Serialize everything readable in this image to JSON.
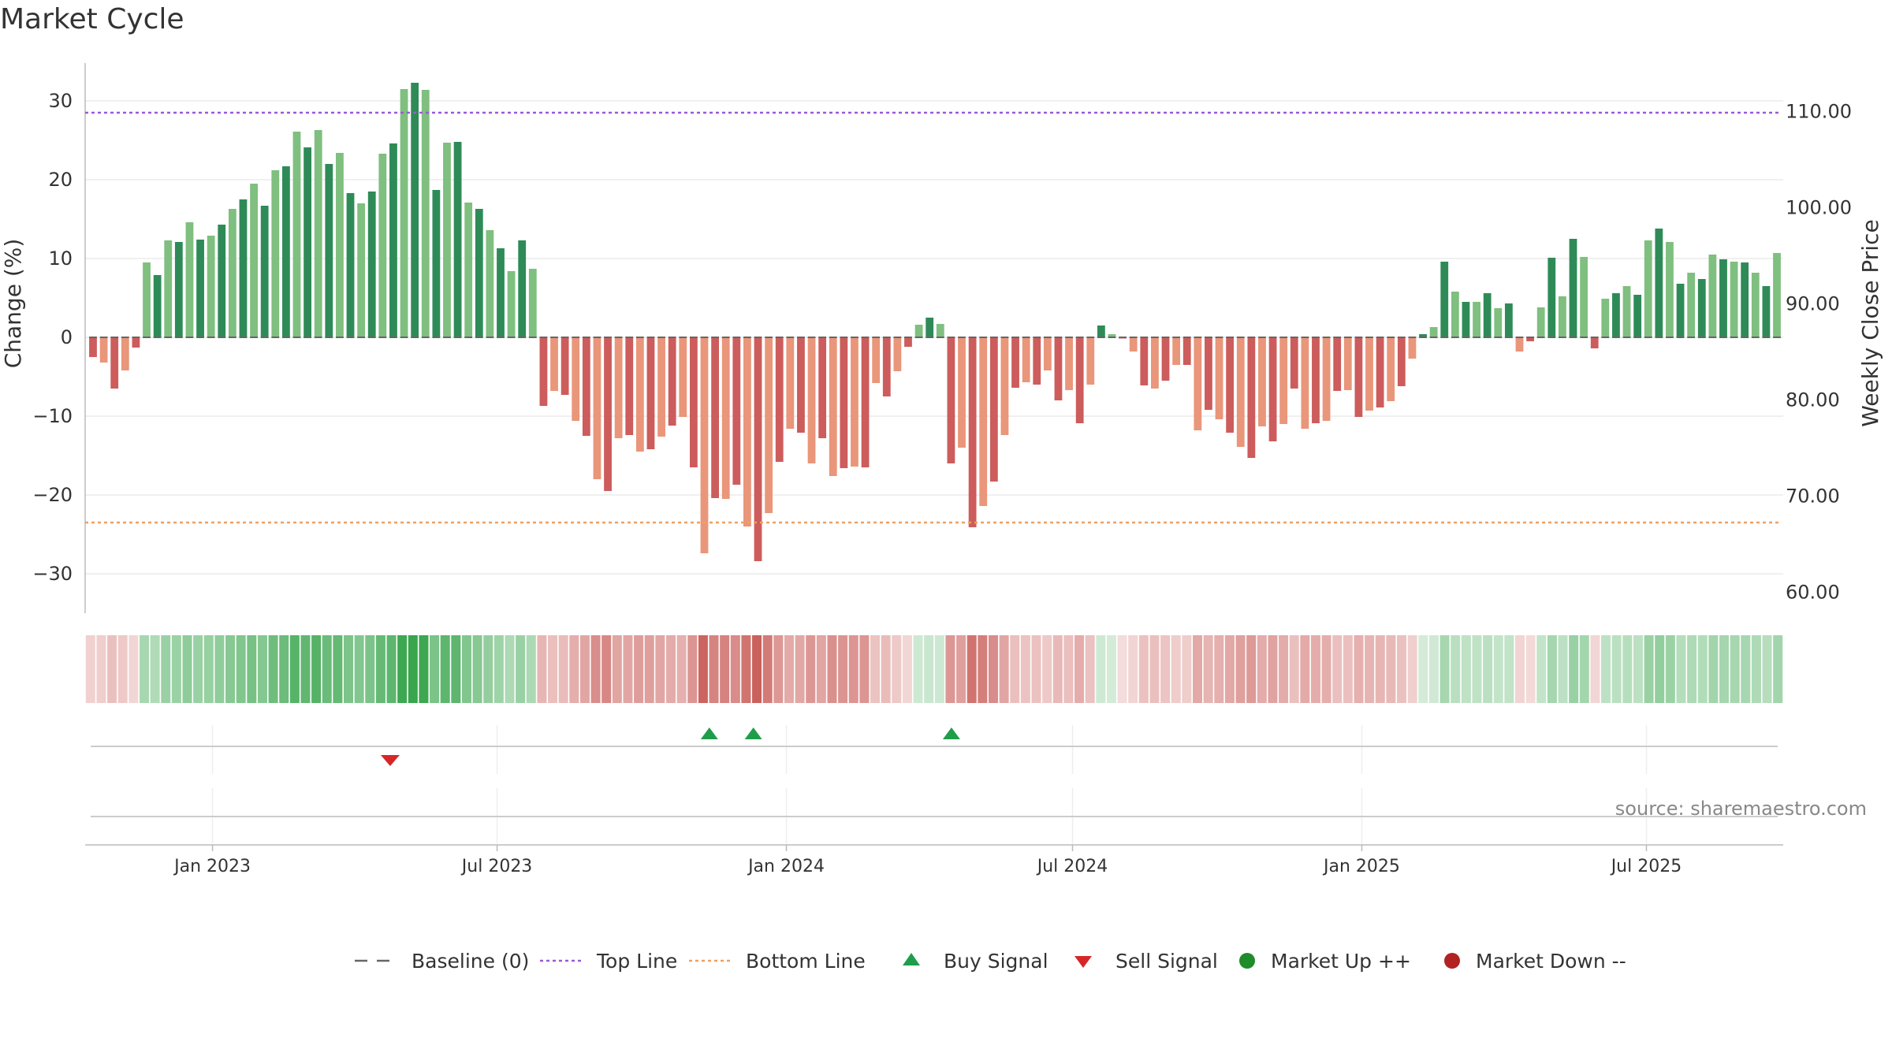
{
  "chart_data": {
    "type": "bar",
    "title": "Market Cycle",
    "ylabel": "Change (%)",
    "y2label": "Weekly Close Price",
    "ylim": [
      -35,
      35
    ],
    "y2lim": [
      57.5,
      115
    ],
    "yticks": [
      30,
      20,
      10,
      0,
      -10,
      -20,
      -30
    ],
    "yticklabels": [
      "30",
      "20",
      "10",
      "0",
      "−10",
      "−20",
      "−30"
    ],
    "y2ticks": [
      110,
      100,
      90,
      80,
      70,
      60
    ],
    "y2ticklabels": [
      "110.00",
      "100.00",
      "90.00",
      "80.00",
      "70.00",
      "60.00"
    ],
    "x_start": "2022-10-17",
    "x_end": "2025-09-22",
    "x_interval_days": 7,
    "xticks": [
      "2023-01-01",
      "2023-07-01",
      "2024-01-01",
      "2024-07-01",
      "2025-01-01",
      "2025-07-01"
    ],
    "xticklabels": [
      "Jan 2023",
      "Jul 2023",
      "Jan 2024",
      "Jul 2024",
      "Jan 2025",
      "Jul 2025"
    ],
    "top_line": 28.5,
    "bottom_line": -23.5,
    "values": [
      -2.5,
      -3.2,
      -6.5,
      -4.2,
      -1.3,
      9.5,
      7.9,
      12.3,
      12.1,
      14.6,
      12.4,
      12.9,
      14.3,
      16.3,
      17.5,
      19.5,
      16.7,
      21.2,
      21.7,
      26.1,
      24.1,
      26.3,
      22,
      23.4,
      18.3,
      17,
      18.5,
      23.3,
      24.6,
      31.5,
      32.3,
      31.4,
      18.7,
      24.7,
      24.8,
      17.1,
      16.3,
      13.6,
      11.3,
      8.4,
      12.3,
      8.7,
      -8.7,
      -6.8,
      -7.3,
      -10.6,
      -12.5,
      -18,
      -19.5,
      -12.8,
      -12.4,
      -14.5,
      -14.2,
      -12.6,
      -11.2,
      -10.1,
      -16.5,
      -27.4,
      -20.4,
      -20.5,
      -18.7,
      -24,
      -28.4,
      -22.3,
      -15.8,
      -11.6,
      -12.1,
      -16,
      -12.8,
      -17.6,
      -16.6,
      -16.4,
      -16.5,
      -5.8,
      -7.5,
      -4.3,
      -1.2,
      1.6,
      2.5,
      1.7,
      -16,
      -14,
      -24.1,
      -21.4,
      -18.3,
      -12.4,
      -6.4,
      -5.7,
      -6,
      -4.2,
      -8,
      -6.7,
      -10.9,
      -6,
      1.5,
      0.4,
      -0.1,
      -1.8,
      -6.1,
      -6.5,
      -5.5,
      -3.5,
      -3.5,
      -11.8,
      -9.2,
      -10.4,
      -12.1,
      -13.9,
      -15.3,
      -11.3,
      -13.2,
      -11,
      -6.5,
      -11.6,
      -10.9,
      -10.6,
      -6.8,
      -6.7,
      -10.1,
      -9.3,
      -8.9,
      -8.1,
      -6.2,
      -2.7,
      0.4,
      1.3,
      9.6,
      5.8,
      4.5,
      4.5,
      5.6,
      3.7,
      4.3,
      -1.8,
      -0.5,
      3.8,
      10.1,
      5.2,
      12.5,
      10.2,
      -1.4,
      4.9,
      5.6,
      6.5,
      5.4,
      12.3,
      13.8,
      12.1,
      6.8,
      8.2,
      7.4,
      10.5,
      9.9,
      9.6,
      9.5,
      8.2,
      6.5,
      10.7
    ],
    "heat_strip": "Market Cycle strength (colour per week)",
    "buy_signal_dates": [
      "2023-11-13",
      "2023-12-11",
      "2024-04-15"
    ],
    "sell_signal_dates": [
      "2023-04-24"
    ],
    "legend": {
      "position": "bottom-center",
      "entries": [
        {
          "label": "Baseline (0)",
          "style": "dash",
          "color": "#666666"
        },
        {
          "label": "Top Line",
          "style": "dotted",
          "color": "#9b59d6"
        },
        {
          "label": "Bottom Line",
          "style": "dotted",
          "color": "#f0a060"
        },
        {
          "label": "Buy Signal",
          "style": "triangle-up",
          "color": "#1f9e4a"
        },
        {
          "label": "Sell Signal",
          "style": "triangle-down",
          "color": "#d62728"
        },
        {
          "label": "Market Up ++",
          "style": "circle",
          "color": "#1f8c2a"
        },
        {
          "label": "Market Down --",
          "style": "circle",
          "color": "#b22222"
        }
      ]
    },
    "source": "source: sharemaestro.com",
    "grid": true,
    "colors": {
      "pos_dark": "#2e8b57",
      "pos_light": "#7fbf7f",
      "neg_dark": "#cd5c5c",
      "neg_light": "#e9967a",
      "top_line": "#9b59d6",
      "bottom_line": "#f0a060",
      "baseline": "#666666",
      "buy": "#1f9e4a",
      "sell": "#d62728"
    }
  }
}
